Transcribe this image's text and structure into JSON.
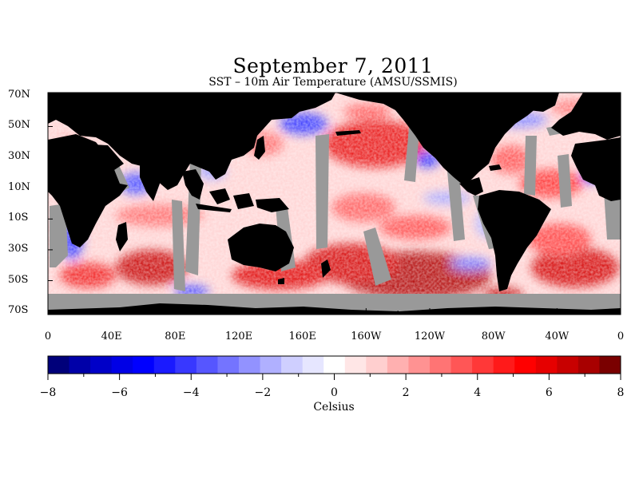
{
  "title": "September 7, 2011",
  "subtitle": "SST – 10m Air Temperature (AMSU/SSMIS)",
  "map": {
    "lat_labels": [
      "70N",
      "50N",
      "30N",
      "10N",
      "10S",
      "30S",
      "50S",
      "70S"
    ],
    "lat_values": [
      70,
      50,
      30,
      10,
      -10,
      -30,
      -50,
      -70
    ],
    "lon_labels": [
      "0",
      "40E",
      "80E",
      "120E",
      "160E",
      "160W",
      "120W",
      "80W",
      "40W",
      "0"
    ],
    "lon_values": [
      0,
      40,
      80,
      120,
      160,
      200,
      240,
      280,
      320,
      360
    ],
    "lat_range": [
      -72,
      72
    ],
    "lon_range": [
      0,
      360
    ],
    "land_color": "#000000",
    "missing_color": "#999999"
  },
  "colorbar": {
    "min": -8,
    "max": 8,
    "tick_labels": [
      "−8",
      "−6",
      "−4",
      "−2",
      "0",
      "2",
      "4",
      "6",
      "8"
    ],
    "tick_values": [
      -8,
      -6,
      -4,
      -2,
      0,
      2,
      4,
      6,
      8
    ],
    "label": "Celsius",
    "colors": [
      "#00007a",
      "#0000a8",
      "#0000c8",
      "#0000e6",
      "#0000ff",
      "#1a1aff",
      "#3838ff",
      "#5656ff",
      "#7474ff",
      "#9292ff",
      "#b0b0ff",
      "#cfcfff",
      "#e6e6ff",
      "#ffffff",
      "#ffe6e6",
      "#ffcfcf",
      "#ffb0b0",
      "#ff9292",
      "#ff7474",
      "#ff5656",
      "#ff3838",
      "#ff1a1a",
      "#ff0000",
      "#e60000",
      "#c80000",
      "#a80000",
      "#7a0000"
    ]
  }
}
